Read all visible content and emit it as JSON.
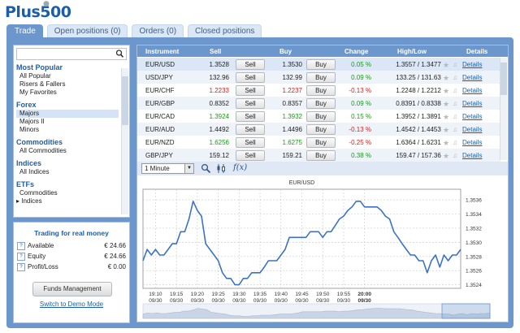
{
  "brand": {
    "name": "Plus500"
  },
  "tabs": [
    {
      "label": "Trade",
      "active": true
    },
    {
      "label": "Open positions (0)",
      "active": false
    },
    {
      "label": "Orders (0)",
      "active": false
    },
    {
      "label": "Closed positions",
      "active": false
    }
  ],
  "sidebar": {
    "search_placeholder": "",
    "categories": [
      {
        "title": "Most Popular",
        "items": [
          "All Popular",
          "Risers & Fallers",
          "My Favorites"
        ]
      },
      {
        "title": "Forex",
        "items": [
          "Majors",
          "Majors II",
          "Minors"
        ]
      },
      {
        "title": "Commodities",
        "items": [
          "All Commodities"
        ]
      },
      {
        "title": "Indices",
        "items": [
          "All Indices"
        ]
      },
      {
        "title": "ETFs",
        "items": [
          "Commodities",
          "Indices"
        ]
      }
    ],
    "selected_item": "Majors"
  },
  "account": {
    "title": "Trading for real money",
    "rows": [
      {
        "label": "Available",
        "value": "€ 24.66"
      },
      {
        "label": "Equity",
        "value": "€ 24.66"
      },
      {
        "label": "Profit/Loss",
        "value": "€ 0.00"
      }
    ],
    "funds_button": "Funds Management",
    "demo_link": "Switch to Demo Mode"
  },
  "table": {
    "headers": {
      "instrument": "Instrument",
      "sell": "Sell",
      "buy": "Buy",
      "change": "Change",
      "highlow": "High/Low",
      "details": "Details"
    },
    "sell_button": "Sell",
    "buy_button": "Buy",
    "details_link": "Details",
    "rows": [
      {
        "instrument": "EUR/USD",
        "sell": "1.3528",
        "buy": "1.3530",
        "change": "0.05 %",
        "highlow": "1.3557 / 1.3477",
        "dir": "up",
        "price_color": "none",
        "selected": true
      },
      {
        "instrument": "USD/JPY",
        "sell": "132.96",
        "buy": "132.99",
        "change": "0.09 %",
        "highlow": "133.25 / 131.63",
        "dir": "up",
        "price_color": "none"
      },
      {
        "instrument": "EUR/CHF",
        "sell": "1.2233",
        "buy": "1.2237",
        "change": "-0.13 %",
        "highlow": "1.2248 / 1.2212",
        "dir": "down",
        "price_color": "down"
      },
      {
        "instrument": "EUR/GBP",
        "sell": "0.8352",
        "buy": "0.8357",
        "change": "0.09 %",
        "highlow": "0.8391 / 0.8338",
        "dir": "up",
        "price_color": "none"
      },
      {
        "instrument": "EUR/CAD",
        "sell": "1.3924",
        "buy": "1.3932",
        "change": "0.15 %",
        "highlow": "1.3952 / 1.3891",
        "dir": "up",
        "price_color": "up"
      },
      {
        "instrument": "EUR/AUD",
        "sell": "1.4492",
        "buy": "1.4496",
        "change": "-0.13 %",
        "highlow": "1.4542 / 1.4453",
        "dir": "down",
        "price_color": "none"
      },
      {
        "instrument": "EUR/NZD",
        "sell": "1.6256",
        "buy": "1.6275",
        "change": "-0.25 %",
        "highlow": "1.6364 / 1.6231",
        "dir": "down",
        "price_color": "up"
      },
      {
        "instrument": "GBP/JPY",
        "sell": "159.12",
        "buy": "159.21",
        "change": "0.38 %",
        "highlow": "159.47 / 157.36",
        "dir": "up",
        "price_color": "none"
      }
    ]
  },
  "toolbar": {
    "interval": "1 Minute"
  },
  "chart_data": {
    "type": "line",
    "title": "EUR/USD",
    "ylim": [
      1.35235,
      1.35375
    ],
    "y_ticks": [
      "1.3536",
      "1.3534",
      "1.3532",
      "1.3530",
      "1.3528",
      "1.3526",
      "1.3524"
    ],
    "y_tick_values": [
      1.3536,
      1.3534,
      1.3532,
      1.353,
      1.3528,
      1.3526,
      1.3524
    ],
    "x_ticks": [
      {
        "time": "19:10",
        "date": "09/30",
        "bold": false
      },
      {
        "time": "19:15",
        "date": "09/30",
        "bold": false
      },
      {
        "time": "19:20",
        "date": "09/30",
        "bold": false
      },
      {
        "time": "19:25",
        "date": "09/30",
        "bold": false
      },
      {
        "time": "19:30",
        "date": "09/30",
        "bold": false
      },
      {
        "time": "19:35",
        "date": "09/30",
        "bold": false
      },
      {
        "time": "19:40",
        "date": "09/30",
        "bold": false
      },
      {
        "time": "19:45",
        "date": "09/30",
        "bold": false
      },
      {
        "time": "19:50",
        "date": "09/30",
        "bold": false
      },
      {
        "time": "19:55",
        "date": "09/30",
        "bold": false
      },
      {
        "time": "20:00",
        "date": "09/30",
        "bold": true
      }
    ],
    "x": [
      -3,
      -2,
      -1,
      0,
      1,
      2,
      3,
      4,
      5,
      6,
      7,
      8,
      9,
      10,
      11,
      12,
      13,
      14,
      15,
      16,
      17,
      18,
      19,
      20,
      21,
      22,
      23,
      24,
      25,
      26,
      27,
      28,
      29,
      30,
      31,
      32,
      33,
      34,
      35,
      36,
      37,
      38,
      39,
      40,
      41,
      42,
      43,
      44,
      45,
      46,
      47,
      48,
      49,
      50,
      51,
      52,
      53,
      54,
      55,
      56,
      57,
      58,
      59,
      60,
      61,
      62,
      63,
      64,
      65,
      66,
      67,
      68,
      69,
      70,
      71,
      72,
      73
    ],
    "values": [
      1.35274,
      1.3529,
      1.35282,
      1.3529,
      1.35282,
      1.35282,
      1.3529,
      1.35298,
      1.35298,
      1.35315,
      1.35315,
      1.35333,
      1.35358,
      1.35345,
      1.35337,
      1.35298,
      1.3529,
      1.35282,
      1.35274,
      1.35257,
      1.35249,
      1.35249,
      1.3524,
      1.3524,
      1.35249,
      1.35249,
      1.35257,
      1.35257,
      1.35257,
      1.35265,
      1.35274,
      1.35274,
      1.35274,
      1.35282,
      1.3529,
      1.35307,
      1.35307,
      1.35307,
      1.35307,
      1.35307,
      1.35315,
      1.35315,
      1.35315,
      1.35307,
      1.35315,
      1.35315,
      1.35324,
      1.35333,
      1.35337,
      1.35345,
      1.3535,
      1.35358,
      1.35358,
      1.3535,
      1.3535,
      1.3535,
      1.3535,
      1.35345,
      1.35337,
      1.35333,
      1.35315,
      1.35307,
      1.35298,
      1.3529,
      1.35282,
      1.35282,
      1.35274,
      1.35274,
      1.35257,
      1.35274,
      1.35282,
      1.35265,
      1.35282,
      1.35274,
      1.35282,
      1.35282,
      1.3529
    ],
    "grid": true,
    "overview_strip": true
  }
}
